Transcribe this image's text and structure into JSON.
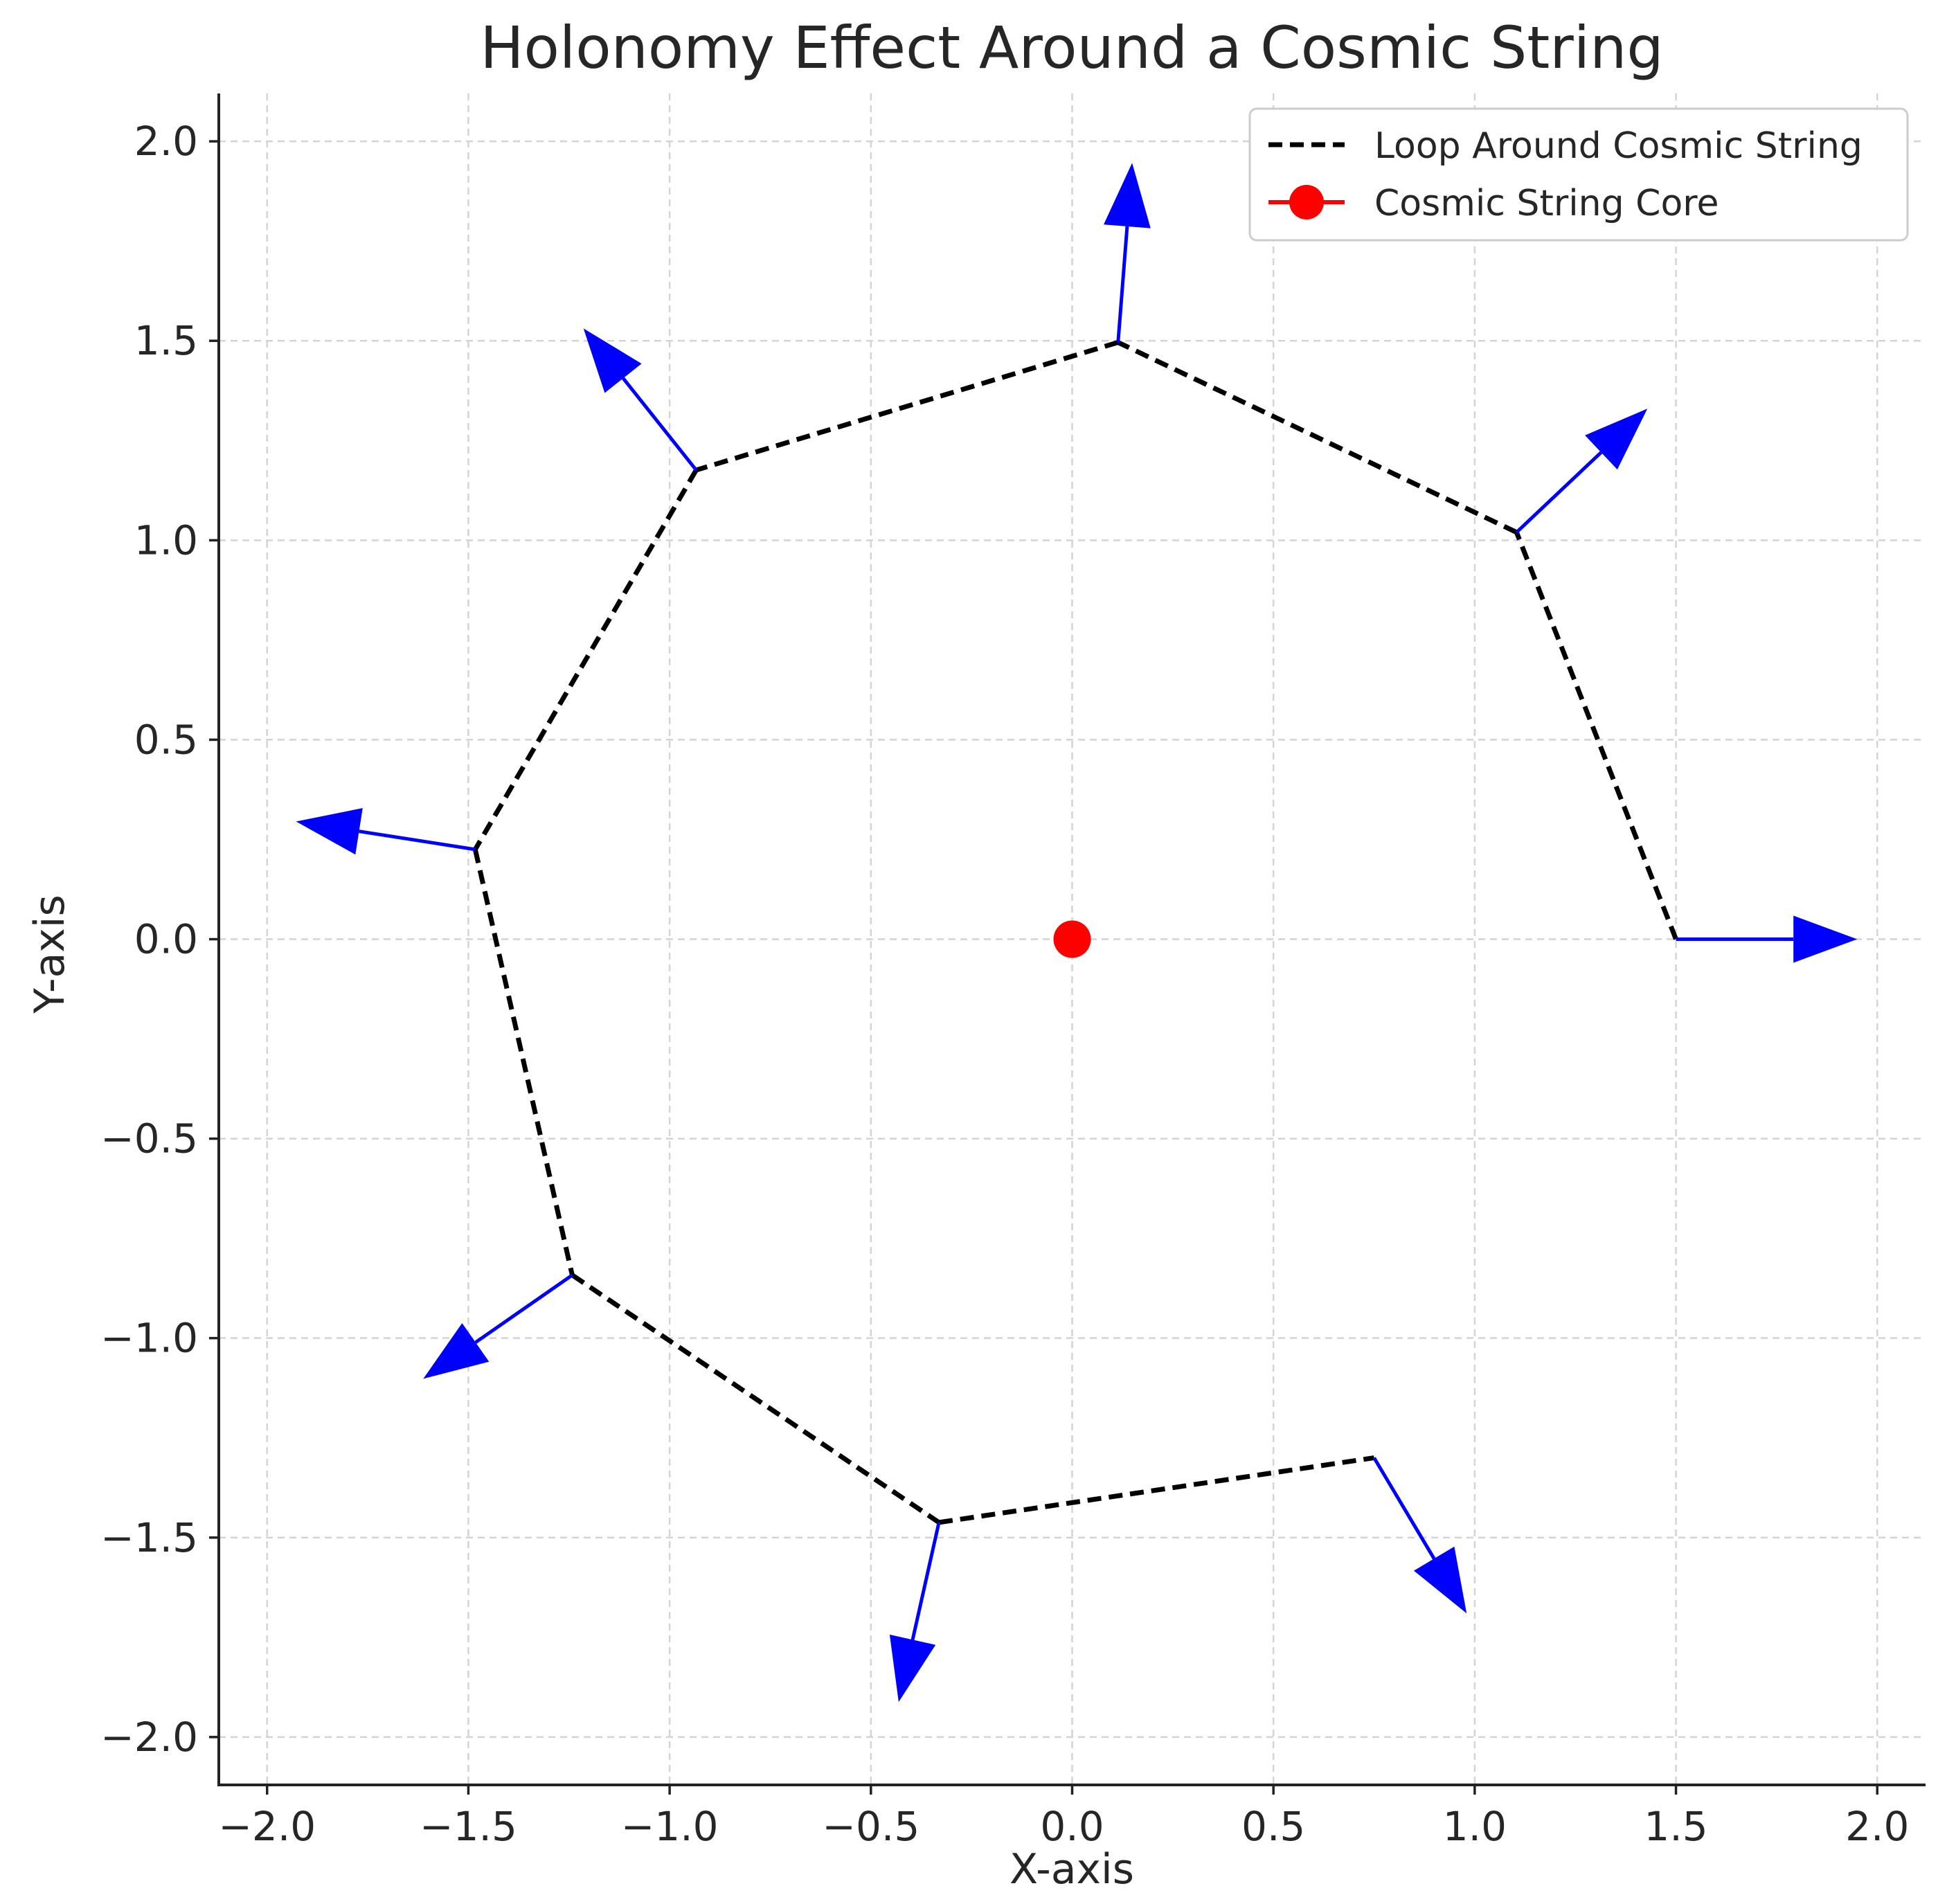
{
  "chart_data": {
    "type": "line",
    "title": "Holonomy Effect Around a Cosmic String",
    "xlabel": "X-axis",
    "ylabel": "Y-axis",
    "xlim": [
      -2.12,
      2.12
    ],
    "ylim": [
      -2.12,
      2.12
    ],
    "xticks": [
      -2.0,
      -1.5,
      -1.0,
      -0.5,
      0.0,
      0.5,
      1.0,
      1.5,
      2.0
    ],
    "yticks": [
      -2.0,
      -1.5,
      -1.0,
      -0.5,
      0.0,
      0.5,
      1.0,
      1.5,
      2.0
    ],
    "xtick_labels": [
      "−2.0",
      "−1.5",
      "−1.0",
      "−0.5",
      "0.0",
      "0.5",
      "1.0",
      "1.5",
      "2.0"
    ],
    "ytick_labels": [
      "−2.0",
      "−1.5",
      "−1.0",
      "−0.5",
      "0.0",
      "0.5",
      "1.0",
      "1.5",
      "2.0"
    ],
    "grid": true,
    "legend_position": "top-right",
    "series": [
      {
        "name": "Loop Around Cosmic String",
        "style": "dashed",
        "color": "#000000",
        "x": [
          1.5,
          1.104,
          0.114,
          -0.934,
          -1.483,
          -1.242,
          -0.331,
          0.75
        ],
        "y": [
          0.0,
          1.02,
          1.496,
          1.176,
          0.225,
          -0.842,
          -1.462,
          -1.3
        ]
      },
      {
        "name": "Cosmic String Core",
        "style": "marker",
        "color": "#ff0000",
        "x": [
          0.0
        ],
        "y": [
          0.0
        ]
      }
    ],
    "vectors": {
      "color": "#0000ff",
      "x": [
        1.5,
        1.104,
        0.114,
        -0.934,
        -1.483,
        -1.242,
        -0.331,
        0.75
      ],
      "y": [
        0.0,
        1.02,
        1.496,
        1.176,
        0.225,
        -0.842,
        -1.462,
        -1.3
      ],
      "u": [
        0.45,
        0.325,
        0.035,
        -0.28,
        -0.445,
        -0.37,
        -0.1,
        0.23
      ],
      "v": [
        0.0,
        0.31,
        0.45,
        0.355,
        0.07,
        -0.26,
        -0.45,
        -0.39
      ]
    }
  }
}
